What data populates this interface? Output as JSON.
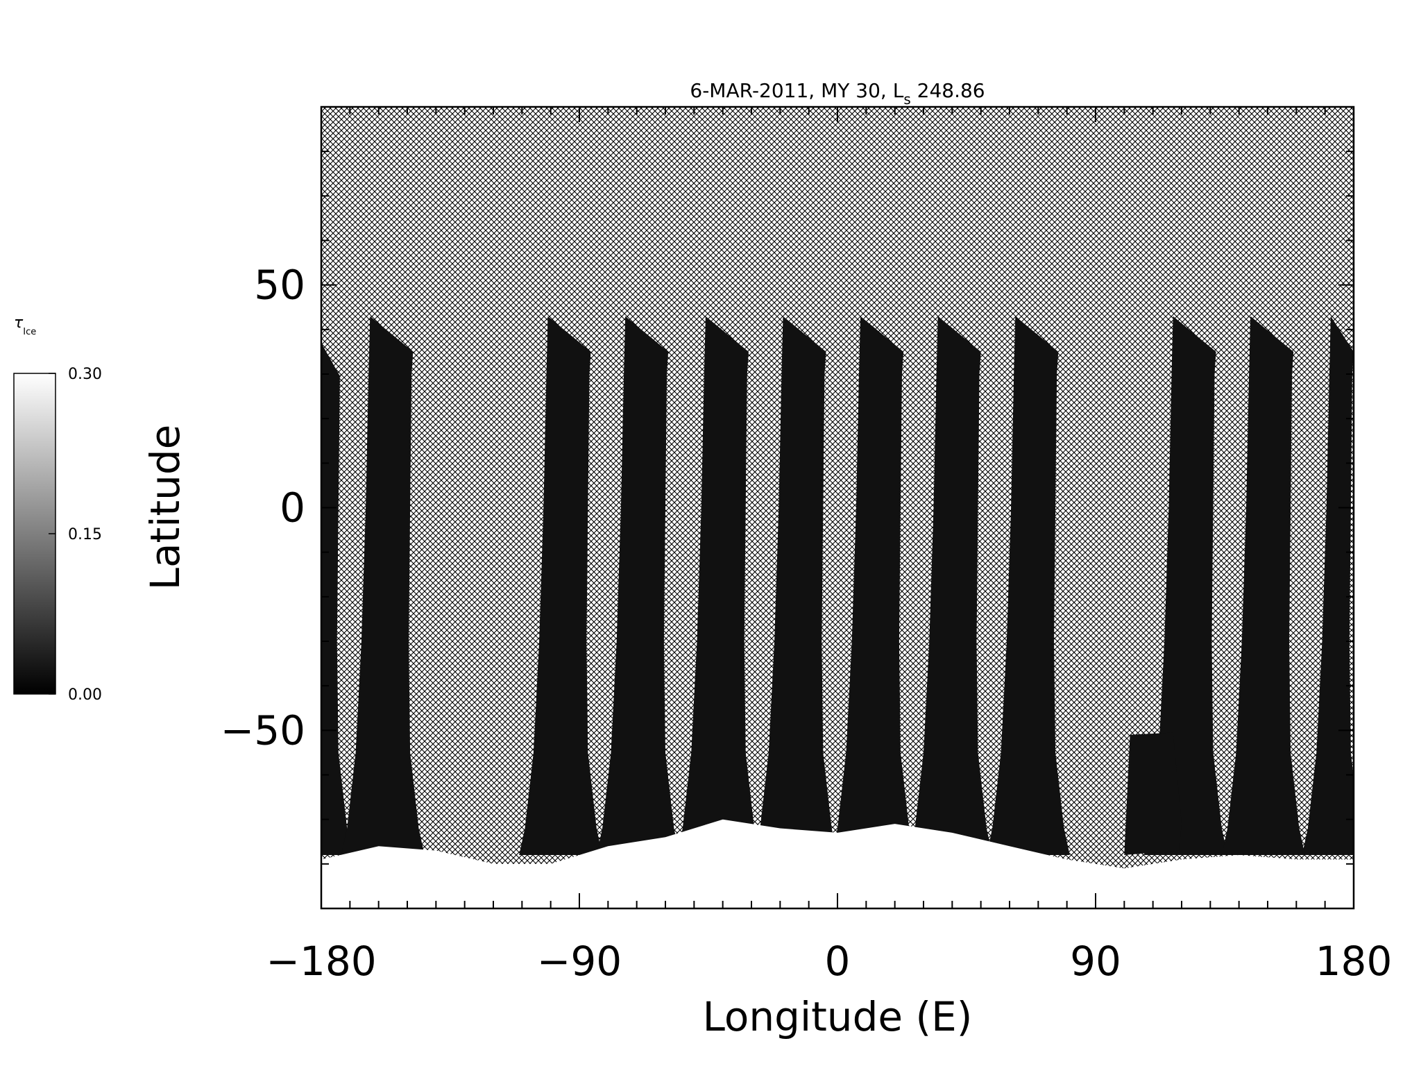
{
  "chart_data": {
    "type": "heatmap",
    "title": {
      "prefix": "6-MAR-2011, MY 30,  ",
      "ls_letter": "L",
      "ls_subscript": "s",
      "ls_value": " 248.86"
    },
    "xlabel": "Longitude (E)",
    "ylabel": "Latitude",
    "xlim": [
      -180,
      180
    ],
    "ylim": [
      -90,
      90
    ],
    "x_ticks": [
      -180,
      -90,
      0,
      90,
      180
    ],
    "x_tick_labels": [
      "−180",
      "−90",
      "0",
      "90",
      "180"
    ],
    "y_ticks": [
      -50,
      0,
      50
    ],
    "y_tick_labels": [
      "−50",
      "0",
      "50"
    ],
    "x_minor_step": 10,
    "y_minor_step": 10,
    "no_data_pattern": "crosshatch",
    "colorbar": {
      "label_symbol": "τ",
      "label_subscript": "Ice",
      "min": 0.0,
      "max": 0.3,
      "ticks": [
        0.0,
        0.15,
        0.3
      ],
      "tick_labels": [
        "0.00",
        "0.15",
        "0.30"
      ],
      "colormap": "grayscale",
      "colors": [
        "#000000",
        "#ffffff"
      ]
    },
    "swaths": [
      {
        "lon_north": -180,
        "width": 7,
        "lat_top": 37
      },
      {
        "lon_north": -163,
        "width": 15,
        "lat_top": 43
      },
      {
        "lon_north": -101,
        "width": 15,
        "lat_top": 43
      },
      {
        "lon_north": -74,
        "width": 15,
        "lat_top": 43
      },
      {
        "lon_north": -46,
        "width": 15,
        "lat_top": 43
      },
      {
        "lon_north": -19,
        "width": 15,
        "lat_top": 43
      },
      {
        "lon_north": 8,
        "width": 15,
        "lat_top": 43
      },
      {
        "lon_north": 35,
        "width": 15,
        "lat_top": 43
      },
      {
        "lon_north": 62,
        "width": 15,
        "lat_top": 43
      },
      {
        "lon_north": 117,
        "width": 15,
        "lat_top": 43
      },
      {
        "lon_north": 144,
        "width": 15,
        "lat_top": 43
      },
      {
        "lon_north": 172,
        "width": 8,
        "lat_top": 43
      }
    ],
    "swath_value": 0.02,
    "polar_cloud_value": 0.3,
    "polar_cloud_edge": [
      [
        -180,
        -79
      ],
      [
        -160,
        -76
      ],
      [
        -140,
        -77
      ],
      [
        -120,
        -80
      ],
      [
        -100,
        -80
      ],
      [
        -80,
        -76
      ],
      [
        -60,
        -74
      ],
      [
        -40,
        -70
      ],
      [
        -20,
        -72
      ],
      [
        0,
        -73
      ],
      [
        20,
        -71
      ],
      [
        40,
        -73
      ],
      [
        60,
        -76
      ],
      [
        80,
        -79
      ],
      [
        100,
        -81
      ],
      [
        120,
        -79
      ],
      [
        140,
        -78
      ],
      [
        160,
        -79
      ],
      [
        180,
        -79
      ]
    ],
    "block": {
      "lon": [
        102,
        120
      ],
      "lat": [
        -77,
        -51
      ]
    }
  }
}
